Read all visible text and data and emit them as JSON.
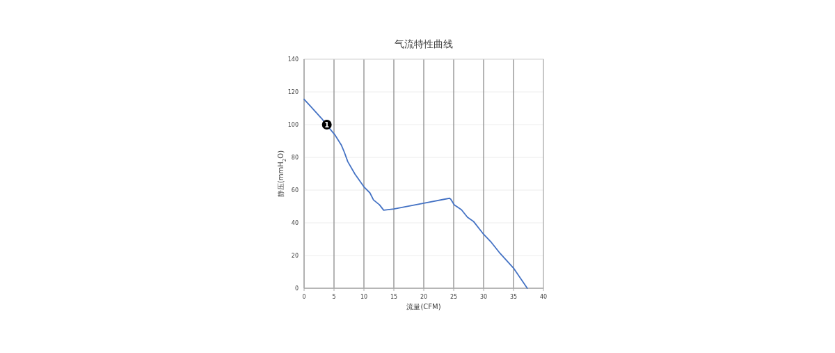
{
  "chart_data": {
    "type": "line",
    "title": "气流特性曲线",
    "xlabel": "流量(CFM)",
    "ylabel": "静压(mmH$_{2}$O)",
    "x": [
      0,
      1,
      2,
      3,
      3.8,
      5.1,
      6.2,
      6.7,
      7.3,
      8.5,
      10,
      11,
      11.6,
      12.6,
      13.3,
      15,
      20,
      24.3,
      24.5,
      25.1,
      26.3,
      27.3,
      28.3,
      30,
      31.3,
      32.6,
      35,
      37.3
    ],
    "values": [
      115.5,
      111.5,
      107.5,
      103.5,
      99.6,
      94,
      87.7,
      83.4,
      77.4,
      69.8,
      62,
      58.3,
      54,
      51,
      47.7,
      48.5,
      52,
      55,
      54.5,
      51,
      48,
      43.4,
      40.9,
      33,
      28,
      22,
      12.3,
      0
    ],
    "color": "#4472c4",
    "xlim": [
      0,
      40
    ],
    "ylim": [
      0,
      140
    ],
    "xticks": [
      0,
      5,
      10,
      15,
      20,
      25,
      30,
      35,
      40
    ],
    "yticks": [
      0,
      20,
      40,
      60,
      80,
      100,
      120,
      140
    ],
    "grid": true,
    "annotations": [
      {
        "text": "1",
        "x": 3.8,
        "y": 100
      }
    ]
  }
}
